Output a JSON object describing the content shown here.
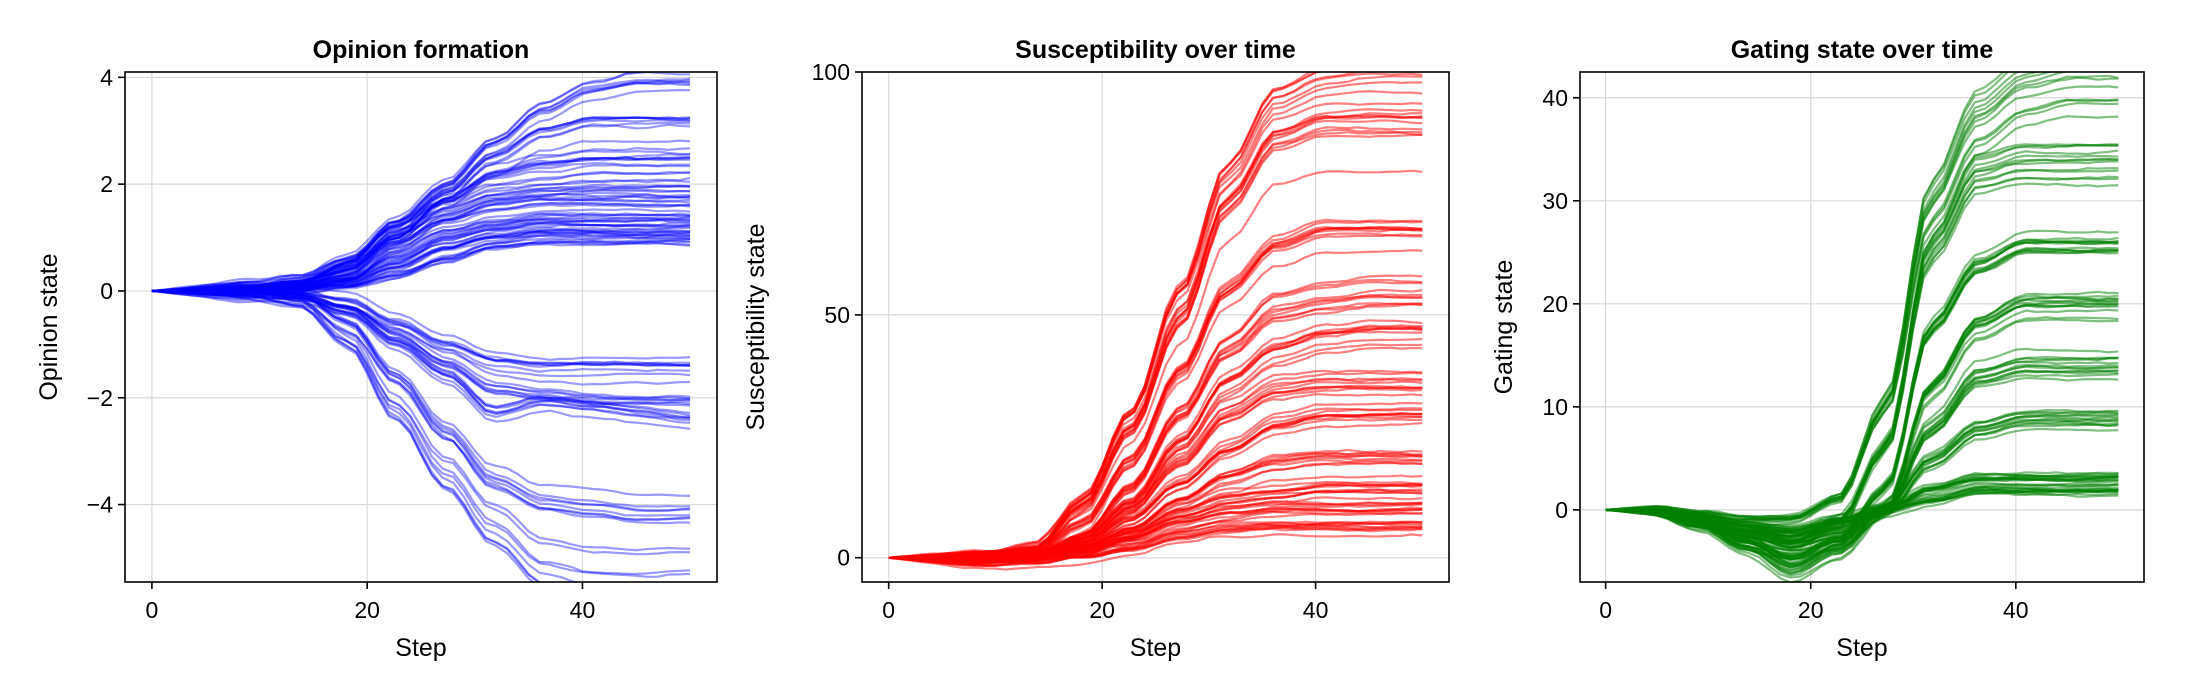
{
  "chart_data": [
    {
      "type": "line",
      "title": "Opinion formation",
      "xlabel": "Step",
      "ylabel": "Opinion state",
      "xlim": [
        -2.5,
        52.5
      ],
      "ylim": [
        -5.45,
        4.1
      ],
      "xticks": [
        0,
        20,
        40
      ],
      "yticks": [
        -4,
        -2,
        0,
        2,
        4
      ],
      "xtick_labels": [
        "0",
        "20",
        "40"
      ],
      "ytick_labels": [
        "−4",
        "−2",
        "0",
        "2",
        "4"
      ],
      "grid": true,
      "color": "#0000ff",
      "opacity": 0.4,
      "steps": 50,
      "series_count": 100,
      "series": [
        {
          "values": [
            0,
            0.02,
            0.08,
            0.2,
            0.6,
            1.3,
            2.0,
            2.8,
            3.4,
            3.8,
            3.95,
            3.95
          ]
        },
        {
          "values": [
            0,
            0.02,
            0.06,
            0.18,
            0.5,
            1.1,
            1.8,
            2.5,
            3.0,
            3.2,
            3.2,
            3.2
          ]
        },
        {
          "values": [
            0,
            0.01,
            0.05,
            0.15,
            0.4,
            1.0,
            1.7,
            2.2,
            2.4,
            2.5,
            2.5,
            2.5
          ]
        },
        {
          "values": [
            0,
            0.01,
            0.05,
            0.15,
            0.5,
            1.2,
            1.6,
            1.9,
            2.0,
            2.1,
            2.1,
            2.1
          ]
        },
        {
          "values": [
            0,
            0.01,
            0.04,
            0.1,
            0.3,
            0.9,
            1.4,
            1.7,
            1.8,
            1.8,
            1.8,
            1.8
          ]
        },
        {
          "values": [
            0,
            0.01,
            0.03,
            0.08,
            0.25,
            0.8,
            1.2,
            1.4,
            1.5,
            1.5,
            1.5,
            1.5
          ]
        },
        {
          "values": [
            0,
            0.01,
            0.03,
            0.06,
            0.2,
            0.6,
            1.0,
            1.2,
            1.3,
            1.3,
            1.3,
            1.3
          ]
        },
        {
          "values": [
            0,
            0.01,
            0.02,
            0.05,
            0.15,
            0.45,
            0.8,
            1.0,
            1.1,
            1.1,
            1.1,
            1.1
          ]
        },
        {
          "values": [
            0,
            0.0,
            0.02,
            0.04,
            0.1,
            0.3,
            0.6,
            0.85,
            0.95,
            0.95,
            0.95,
            0.95
          ]
        },
        {
          "values": [
            0,
            -0.01,
            -0.02,
            -0.05,
            -0.2,
            -0.6,
            -1.0,
            -1.3,
            -1.4,
            -1.4,
            -1.4,
            -1.4
          ]
        },
        {
          "values": [
            0,
            -0.01,
            -0.03,
            -0.08,
            -0.3,
            -0.8,
            -1.3,
            -1.8,
            -1.9,
            -2.0,
            -2.0,
            -2.0
          ]
        },
        {
          "values": [
            0,
            -0.01,
            -0.04,
            -0.1,
            -0.4,
            -1.0,
            -1.6,
            -2.3,
            -2.1,
            -2.2,
            -2.3,
            -2.4
          ]
        },
        {
          "values": [
            0,
            -0.01,
            -0.03,
            -0.1,
            -0.6,
            -1.6,
            -2.6,
            -3.5,
            -3.9,
            -4.0,
            -4.1,
            -4.1
          ]
        },
        {
          "values": [
            0,
            -0.02,
            -0.05,
            -0.2,
            -0.9,
            -2.2,
            -3.4,
            -4.4,
            -5.1,
            -5.3,
            -5.35,
            -5.3
          ]
        }
      ]
    },
    {
      "type": "line",
      "title": "Susceptibility over time",
      "xlabel": "Step",
      "ylabel": "Susceptibility state",
      "xlim": [
        -2.5,
        52.5
      ],
      "ylim": [
        -5,
        100
      ],
      "xticks": [
        0,
        20,
        40
      ],
      "yticks": [
        0,
        50,
        100
      ],
      "xtick_labels": [
        "0",
        "20",
        "40"
      ],
      "ytick_labels": [
        "0",
        "50",
        "100"
      ],
      "grid": true,
      "color": "#ff0000",
      "opacity": 0.5,
      "steps": 50,
      "series_count": 100,
      "series": [
        {
          "values": [
            0,
            0,
            0.2,
            2,
            12,
            30,
            55,
            80,
            95,
            99,
            100,
            100
          ]
        },
        {
          "values": [
            0,
            0,
            0.2,
            1.5,
            10,
            26,
            48,
            72,
            85,
            88,
            88,
            88
          ]
        },
        {
          "values": [
            0,
            0,
            0.1,
            1,
            7,
            20,
            38,
            55,
            64,
            67,
            67,
            67
          ]
        },
        {
          "values": [
            0,
            0,
            0.1,
            0.8,
            5,
            15,
            30,
            44,
            52,
            54,
            55,
            55
          ]
        },
        {
          "values": [
            0,
            0,
            0.1,
            0.6,
            4,
            12,
            25,
            38,
            45,
            48,
            49,
            49
          ]
        },
        {
          "values": [
            0,
            0,
            0.05,
            0.5,
            3,
            10,
            20,
            30,
            35,
            36,
            36,
            36
          ]
        },
        {
          "values": [
            0,
            0,
            0.05,
            0.4,
            2.5,
            8,
            15,
            22,
            27,
            29,
            29,
            29
          ]
        },
        {
          "values": [
            0,
            0,
            0.03,
            0.3,
            2,
            6,
            12,
            17,
            20,
            21,
            21,
            21
          ]
        },
        {
          "values": [
            0,
            0,
            0.02,
            0.2,
            1.5,
            4.5,
            9,
            12,
            13,
            14,
            14,
            14
          ]
        },
        {
          "values": [
            0,
            0,
            0.02,
            0.15,
            1.2,
            3.5,
            7,
            9,
            10,
            10,
            10,
            10
          ]
        },
        {
          "values": [
            0,
            0,
            0.01,
            0.1,
            0.8,
            2.5,
            5,
            6.5,
            7,
            7,
            7,
            7
          ]
        }
      ]
    },
    {
      "type": "line",
      "title": "Gating state over time",
      "xlabel": "Step",
      "ylabel": "Gating state",
      "xlim": [
        -2.5,
        52.5
      ],
      "ylim": [
        -7,
        42.5
      ],
      "xticks": [
        0,
        20,
        40
      ],
      "yticks": [
        0,
        10,
        20,
        30,
        40
      ],
      "xtick_labels": [
        "0",
        "20",
        "40"
      ],
      "ytick_labels": [
        "0",
        "10",
        "20",
        "30",
        "40"
      ],
      "grid": true,
      "color": "#008000",
      "opacity": 0.5,
      "steps": 50,
      "series_count": 100,
      "series": [
        {
          "values": [
            0,
            0,
            -0.5,
            -1,
            -1,
            1,
            10,
            30,
            38,
            41,
            42,
            42
          ]
        },
        {
          "values": [
            0,
            0,
            -0.8,
            -2,
            -3,
            -1,
            6,
            25,
            32,
            33,
            33,
            33
          ]
        },
        {
          "values": [
            0,
            0,
            -1,
            -3,
            -5,
            -3,
            2,
            18,
            24,
            26,
            26,
            26
          ]
        },
        {
          "values": [
            0,
            0,
            -1.2,
            -3.5,
            -6,
            -4,
            0,
            12,
            18,
            20,
            20,
            20
          ]
        },
        {
          "values": [
            0,
            0,
            -1,
            -3,
            -4,
            -3,
            0,
            8,
            13,
            14,
            14,
            14
          ]
        },
        {
          "values": [
            0,
            0,
            -0.8,
            -2,
            -3,
            -2,
            0,
            5,
            8,
            9,
            9,
            9
          ]
        },
        {
          "values": [
            0,
            0,
            -0.5,
            -1.5,
            -2,
            -1,
            0,
            2,
            3,
            3,
            3,
            3
          ]
        },
        {
          "values": [
            0,
            0,
            -0.6,
            -1.8,
            -2.5,
            -1.2,
            0,
            1,
            2,
            2,
            2,
            2
          ]
        }
      ]
    }
  ]
}
